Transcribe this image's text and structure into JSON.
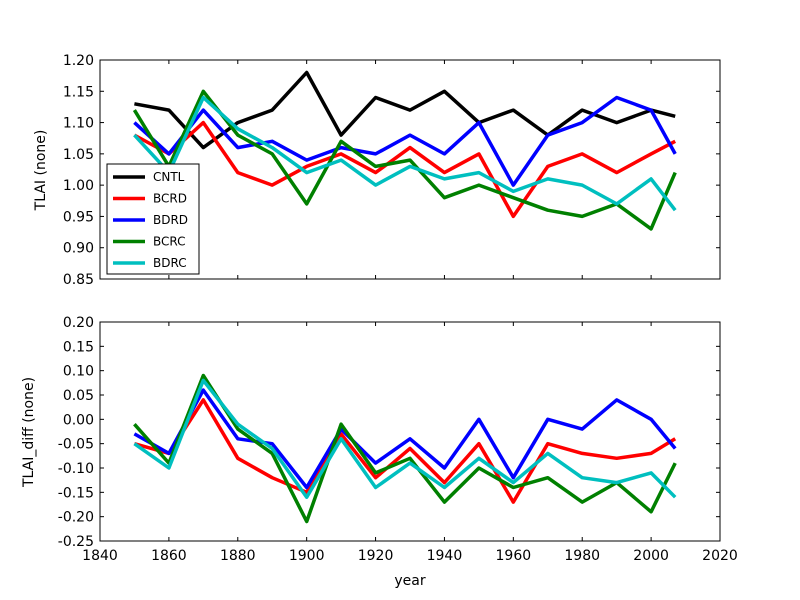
{
  "chart_data": [
    {
      "type": "line",
      "ylabel": "TLAI (none)",
      "xlabel": "",
      "xlim": [
        1840,
        2020
      ],
      "ylim": [
        0.85,
        1.2
      ],
      "xticks": [
        1840,
        1860,
        1880,
        1900,
        1920,
        1940,
        1960,
        1980,
        2000,
        2020
      ],
      "yticks": [
        0.85,
        0.9,
        0.95,
        1.0,
        1.05,
        1.1,
        1.15,
        1.2
      ],
      "show_xtick_labels": false,
      "legend": {
        "placement": "lower-left",
        "entries": [
          {
            "label": "CNTL",
            "color": "#000000"
          },
          {
            "label": "BCRD",
            "color": "#ff0000"
          },
          {
            "label": "BDRD",
            "color": "#0000ff"
          },
          {
            "label": "BCRC",
            "color": "#008000"
          },
          {
            "label": "BDRC",
            "color": "#00bfbf"
          }
        ]
      },
      "x": [
        1850,
        1860,
        1870,
        1880,
        1890,
        1900,
        1910,
        1920,
        1930,
        1940,
        1950,
        1960,
        1970,
        1980,
        1990,
        2000,
        2007
      ],
      "series": [
        {
          "name": "CNTL",
          "color": "#000000",
          "values": [
            1.13,
            1.12,
            1.06,
            1.1,
            1.12,
            1.18,
            1.08,
            1.14,
            1.12,
            1.15,
            1.1,
            1.12,
            1.08,
            1.12,
            1.1,
            1.12,
            1.11
          ]
        },
        {
          "name": "BCRD",
          "color": "#ff0000",
          "values": [
            1.08,
            1.05,
            1.1,
            1.02,
            1.0,
            1.03,
            1.05,
            1.02,
            1.06,
            1.02,
            1.05,
            0.95,
            1.03,
            1.05,
            1.02,
            1.05,
            1.07
          ]
        },
        {
          "name": "BDRD",
          "color": "#0000ff",
          "values": [
            1.1,
            1.05,
            1.12,
            1.06,
            1.07,
            1.04,
            1.06,
            1.05,
            1.08,
            1.05,
            1.1,
            1.0,
            1.08,
            1.1,
            1.14,
            1.12,
            1.05
          ]
        },
        {
          "name": "BCRC",
          "color": "#008000",
          "values": [
            1.12,
            1.03,
            1.15,
            1.08,
            1.05,
            0.97,
            1.07,
            1.03,
            1.04,
            0.98,
            1.0,
            0.98,
            0.96,
            0.95,
            0.97,
            0.93,
            1.02
          ]
        },
        {
          "name": "BDRC",
          "color": "#00bfbf",
          "values": [
            1.08,
            1.02,
            1.14,
            1.09,
            1.06,
            1.02,
            1.04,
            1.0,
            1.03,
            1.01,
            1.02,
            0.99,
            1.01,
            1.0,
            0.97,
            1.01,
            0.96
          ]
        }
      ]
    },
    {
      "type": "line",
      "ylabel": "TLAI_diff (none)",
      "xlabel": "year",
      "xlim": [
        1840,
        2020
      ],
      "ylim": [
        -0.25,
        0.2
      ],
      "xticks": [
        1840,
        1860,
        1880,
        1900,
        1920,
        1940,
        1960,
        1980,
        2000,
        2020
      ],
      "yticks": [
        -0.25,
        -0.2,
        -0.15,
        -0.1,
        -0.05,
        0.0,
        0.05,
        0.1,
        0.15,
        0.2
      ],
      "show_xtick_labels": true,
      "x": [
        1850,
        1860,
        1870,
        1880,
        1890,
        1900,
        1910,
        1920,
        1930,
        1940,
        1950,
        1960,
        1970,
        1980,
        1990,
        2000,
        2007
      ],
      "series": [
        {
          "name": "BCRD",
          "color": "#ff0000",
          "values": [
            -0.05,
            -0.07,
            0.04,
            -0.08,
            -0.12,
            -0.15,
            -0.03,
            -0.12,
            -0.06,
            -0.13,
            -0.05,
            -0.17,
            -0.05,
            -0.07,
            -0.08,
            -0.07,
            -0.04
          ]
        },
        {
          "name": "BDRD",
          "color": "#0000ff",
          "values": [
            -0.03,
            -0.07,
            0.06,
            -0.04,
            -0.05,
            -0.14,
            -0.02,
            -0.09,
            -0.04,
            -0.1,
            0.0,
            -0.12,
            0.0,
            -0.02,
            0.04,
            0.0,
            -0.06
          ]
        },
        {
          "name": "BCRC",
          "color": "#008000",
          "values": [
            -0.01,
            -0.09,
            0.09,
            -0.02,
            -0.07,
            -0.21,
            -0.01,
            -0.11,
            -0.08,
            -0.17,
            -0.1,
            -0.14,
            -0.12,
            -0.17,
            -0.13,
            -0.19,
            -0.09
          ]
        },
        {
          "name": "BDRC",
          "color": "#00bfbf",
          "values": [
            -0.05,
            -0.1,
            0.08,
            -0.01,
            -0.06,
            -0.16,
            -0.04,
            -0.14,
            -0.09,
            -0.14,
            -0.08,
            -0.13,
            -0.07,
            -0.12,
            -0.13,
            -0.11,
            -0.16
          ]
        }
      ]
    }
  ]
}
